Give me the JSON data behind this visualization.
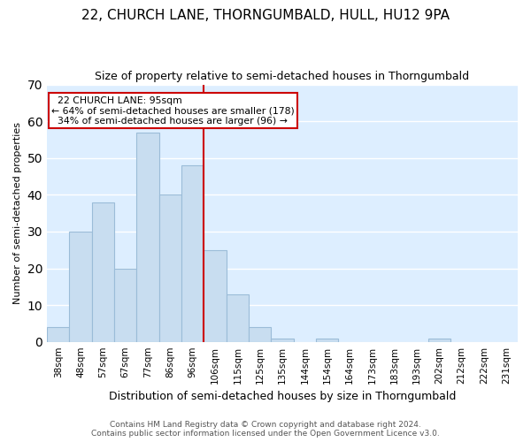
{
  "title": "22, CHURCH LANE, THORNGUMBALD, HULL, HU12 9PA",
  "subtitle": "Size of property relative to semi-detached houses in Thorngumbald",
  "xlabel": "Distribution of semi-detached houses by size in Thorngumbald",
  "ylabel": "Number of semi-detached properties",
  "categories": [
    "38sqm",
    "48sqm",
    "57sqm",
    "67sqm",
    "77sqm",
    "86sqm",
    "96sqm",
    "106sqm",
    "115sqm",
    "125sqm",
    "135sqm",
    "144sqm",
    "154sqm",
    "164sqm",
    "173sqm",
    "183sqm",
    "193sqm",
    "202sqm",
    "212sqm",
    "222sqm",
    "231sqm"
  ],
  "values": [
    4,
    30,
    38,
    20,
    57,
    40,
    48,
    25,
    13,
    4,
    1,
    0,
    1,
    0,
    0,
    0,
    0,
    1,
    0,
    0,
    0
  ],
  "highlight_index": 6,
  "annotation_label": "22 CHURCH LANE: 95sqm",
  "annotation_smaller": "← 64% of semi-detached houses are smaller (178)",
  "annotation_larger": "34% of semi-detached houses are larger (96) →",
  "footer1": "Contains HM Land Registry data © Crown copyright and database right 2024.",
  "footer2": "Contains public sector information licensed under the Open Government Licence v3.0.",
  "ylim": [
    0,
    70
  ],
  "yticks": [
    0,
    10,
    20,
    30,
    40,
    50,
    60,
    70
  ],
  "bg_color": "#ddeeff",
  "bar_fill_color": "#c8ddf0",
  "bar_edge_color": "#9bbcd8",
  "red_line_color": "#cc0000",
  "ann_box_edge_color": "#cc0000",
  "title_fontsize": 11,
  "subtitle_fontsize": 9,
  "xlabel_fontsize": 9,
  "ylabel_fontsize": 8,
  "tick_fontsize": 7.5,
  "footer_fontsize": 6.5
}
